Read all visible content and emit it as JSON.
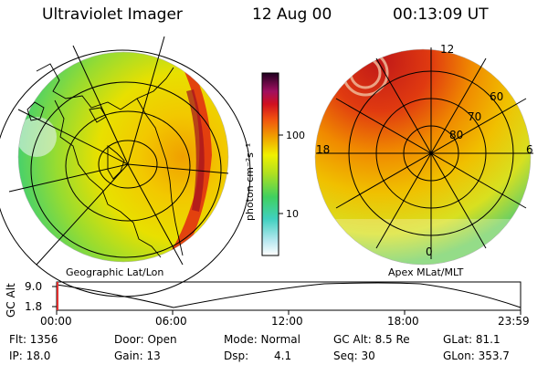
{
  "header": {
    "instrument": "Ultraviolet Imager",
    "date": "12 Aug 00",
    "time": "00:13:09 UT"
  },
  "colorbar": {
    "label": "photon cm⁻²s⁻¹",
    "ticks": [
      "100",
      "10"
    ]
  },
  "left_panel": {
    "caption": "Geographic Lat/Lon"
  },
  "right_panel": {
    "caption": "Apex MLat/MLT",
    "mlt_labels": [
      "12",
      "18",
      "6",
      "0"
    ],
    "mlat_labels": [
      "60",
      "70",
      "80"
    ]
  },
  "timeline": {
    "axis_label": "GC Alt",
    "y_ticks": [
      "9.0",
      "1.8"
    ],
    "x_ticks": [
      "00:00",
      "06:00",
      "12:00",
      "18:00",
      "23:59"
    ]
  },
  "info": {
    "flt": "Flt: 1356",
    "ip": "IP: 18.0",
    "door": "Door: Open",
    "gain": "Gain: 13",
    "mode": "Mode: Normal",
    "dsp_label": "Dsp:",
    "dsp_value": "4.1",
    "gcalt": "GC Alt: 8.5 Re",
    "seq": "Seq: 30",
    "glat": "GLat: 81.1",
    "glon": "GLon: 353.7"
  }
}
